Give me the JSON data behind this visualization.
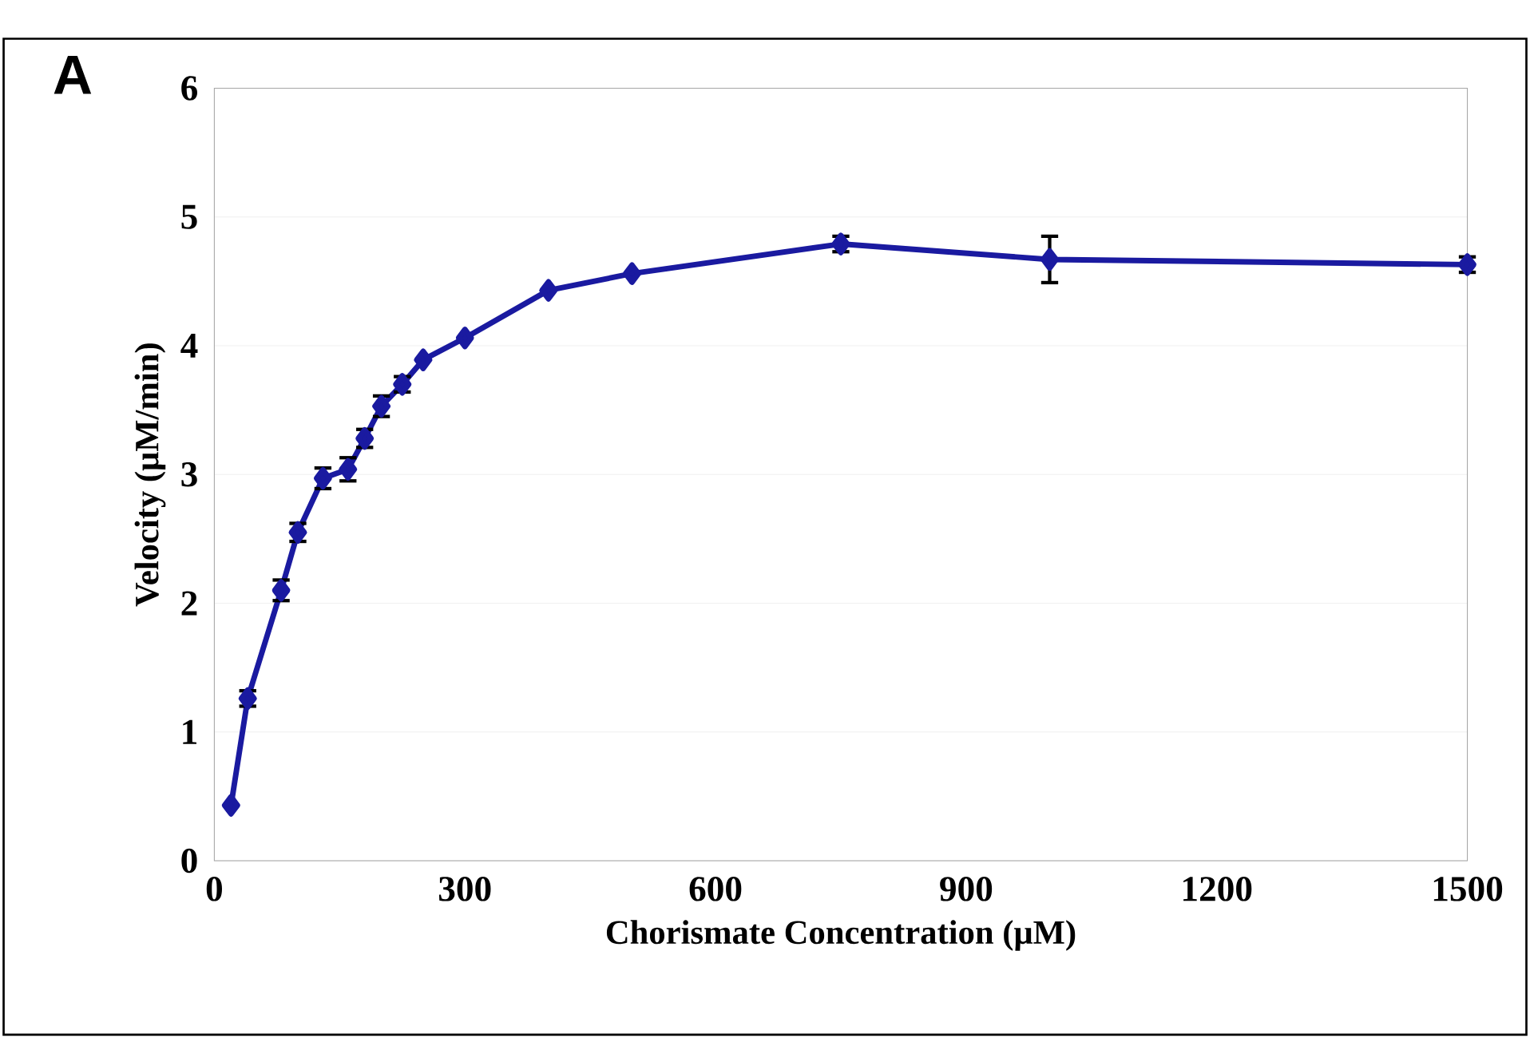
{
  "chart_data": {
    "type": "line",
    "xlabel": "Chorismate Concentration (μM)",
    "ylabel": "Velocity (μM/min)",
    "annotations": [
      "A"
    ],
    "x": [
      20,
      40,
      80,
      100,
      130,
      160,
      180,
      200,
      225,
      250,
      300,
      400,
      500,
      750,
      1000,
      1500
    ],
    "series": [
      {
        "color": "#1a1aa0",
        "values": [
          0.43,
          1.26,
          2.1,
          2.55,
          2.97,
          3.04,
          3.28,
          3.53,
          3.7,
          3.89,
          4.06,
          4.43,
          4.56,
          4.79,
          4.67,
          4.63
        ],
        "errors": [
          null,
          0.06,
          0.08,
          0.07,
          0.08,
          0.09,
          0.07,
          0.08,
          0.06,
          null,
          null,
          null,
          null,
          0.06,
          0.18,
          0.06
        ]
      }
    ],
    "xlim": [
      0,
      1500
    ],
    "xticks": [
      0,
      300,
      600,
      900,
      1200,
      1500
    ],
    "ylim": [
      0,
      6
    ],
    "yticks": [
      0,
      1,
      2,
      3,
      4,
      5,
      6
    ],
    "grid": "y",
    "marker": "diamond",
    "line_style": "solid"
  }
}
